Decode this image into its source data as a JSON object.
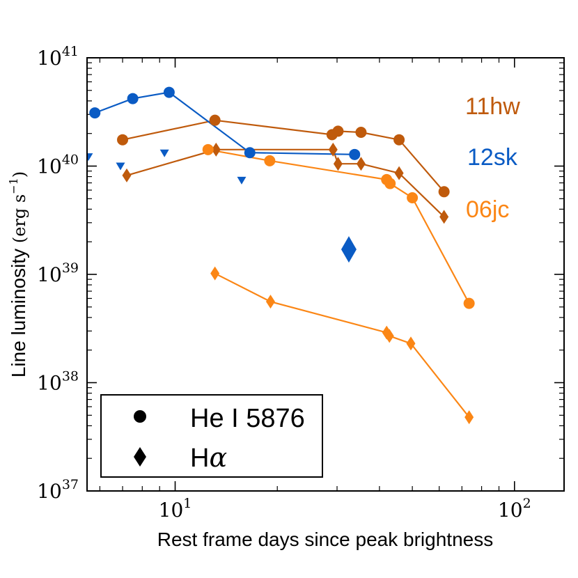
{
  "chart_data": {
    "type": "line",
    "x_scale": "log",
    "y_scale": "log",
    "xlim": [
      5.5,
      140
    ],
    "ylim": [
      1e+37,
      1e+41
    ],
    "xlabel": "Rest frame days since peak brightness",
    "ylabel_main": "Line luminosity ",
    "ylabel_unit": "(erg s",
    "ylabel_unit_sup": "−1",
    "ylabel_unit_close": ")",
    "x_ticks": [
      {
        "value": 10,
        "base": "10",
        "exp": "1"
      },
      {
        "value": 100,
        "base": "10",
        "exp": "2"
      }
    ],
    "y_ticks": [
      {
        "value": 1e+37,
        "base": "10",
        "exp": "37"
      },
      {
        "value": 1e+38,
        "base": "10",
        "exp": "38"
      },
      {
        "value": 1e+39,
        "base": "10",
        "exp": "39"
      },
      {
        "value": 1e+40,
        "base": "10",
        "exp": "40"
      },
      {
        "value": 1e+41,
        "base": "10",
        "exp": "41"
      }
    ],
    "series": [
      {
        "name": "11hw He I 5876",
        "object": "11hw",
        "line": "He I 5876",
        "marker": "circle",
        "color": "#bf5a0c",
        "x": [
          7.0,
          13.1,
          29.0,
          30.2,
          35.3,
          45.7,
          62.0
        ],
        "y": [
          1.75e+40,
          2.65e+40,
          1.95e+40,
          2.1e+40,
          2.05e+40,
          1.75e+40,
          5.8e+39
        ]
      },
      {
        "name": "11hw Halpha",
        "object": "11hw",
        "line": "Halpha",
        "marker": "diamond",
        "color": "#bf5a0c",
        "x": [
          7.2,
          13.2,
          29.2,
          30.2,
          35.3,
          45.7,
          62.0
        ],
        "y": [
          8.2e+39,
          1.42e+40,
          1.42e+40,
          1.05e+40,
          1.05e+40,
          8.6e+39,
          3.4e+39
        ]
      },
      {
        "name": "12sk He I 5876",
        "object": "12sk",
        "line": "He I 5876",
        "marker": "circle",
        "color": "#0a5bc4",
        "x": [
          5.8,
          7.5,
          9.6,
          16.6,
          33.8
        ],
        "y": [
          3.1e+40,
          4.2e+40,
          4.8e+40,
          1.33e+40,
          1.28e+40
        ]
      },
      {
        "name": "06jc He I 5876",
        "object": "06jc",
        "line": "He I 5876",
        "marker": "circle",
        "color": "#fb8615",
        "x": [
          12.5,
          19.0,
          42.0,
          43.0,
          50.0,
          73.5
        ],
        "y": [
          1.42e+40,
          1.12e+40,
          7.5e+39,
          6.9e+39,
          5.1e+39,
          5.4e+38
        ]
      },
      {
        "name": "06jc Halpha",
        "object": "06jc",
        "line": "Halpha",
        "marker": "diamond",
        "color": "#fb8615",
        "x": [
          13.1,
          19.1,
          42.0,
          42.8,
          49.5,
          73.5
        ],
        "y": [
          1.02e+39,
          5.6e+38,
          2.9e+38,
          2.7e+38,
          2.3e+38,
          4.8e+37
        ]
      }
    ],
    "upper_limits": {
      "object": "12sk",
      "marker": "triangle-down",
      "color": "#0a5bc4",
      "x": [
        5.55,
        6.9,
        9.3,
        15.7
      ],
      "y": [
        1.22e+40,
        1e+40,
        1.32e+40,
        7.4e+39
      ]
    },
    "single_points": [
      {
        "object": "12sk",
        "line": "Halpha",
        "marker": "diamond-large",
        "color": "#0a5bc4",
        "x": 32.5,
        "y": 1.7e+39
      }
    ],
    "series_labels": [
      {
        "text": "11hw",
        "color": "#bf5a0c"
      },
      {
        "text": "12sk",
        "color": "#0a5bc4"
      },
      {
        "text": "06jc",
        "color": "#fb8615"
      }
    ],
    "legend": {
      "placement": "lower-left",
      "entries": [
        {
          "marker": "circle",
          "text": "He I 5876"
        },
        {
          "marker": "diamond",
          "text_main": "H",
          "text_greek": "α"
        }
      ]
    }
  }
}
